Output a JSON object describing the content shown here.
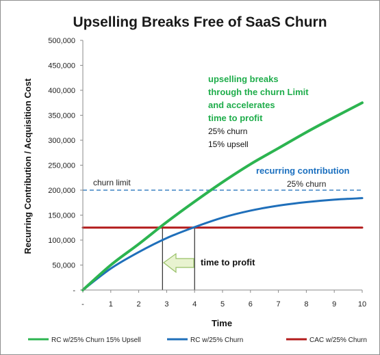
{
  "chart_data": {
    "type": "line",
    "title": "Upselling  Breaks Free of SaaS Churn",
    "xlabel": "Time",
    "ylabel": "Recurring Contribution / Acquisition Cost",
    "xlim": [
      0,
      10
    ],
    "ylim": [
      0,
      500000
    ],
    "x_tick_labels": [
      "-",
      "1",
      "2",
      "3",
      "4",
      "5",
      "6",
      "7",
      "8",
      "9",
      "10"
    ],
    "y_tick_labels": [
      "-",
      "50,000",
      "100,000",
      "150,000",
      "200,000",
      "250,000",
      "300,000",
      "350,000",
      "400,000",
      "450,000",
      "500,000"
    ],
    "x": [
      0,
      1,
      2,
      3,
      4,
      5,
      6,
      7,
      8,
      9,
      10
    ],
    "series": [
      {
        "name": "RC w/25% Churn  15% Upsell",
        "color": "#2cb450",
        "values": [
          0,
          50000,
          92000,
          136000,
          177000,
          216000,
          252000,
          284000,
          316000,
          346000,
          375000
        ]
      },
      {
        "name": "RC w/25% Churn",
        "color": "#1f6fba",
        "values": [
          0,
          43000,
          76000,
          104000,
          126000,
          145000,
          159000,
          169000,
          176000,
          181000,
          184000
        ]
      },
      {
        "name": "CAC w/25% Churn",
        "color": "#b31b1b",
        "values": [
          125000,
          125000,
          125000,
          125000,
          125000,
          125000,
          125000,
          125000,
          125000,
          125000,
          125000
        ]
      }
    ],
    "reference_lines": [
      {
        "label": "churn limit",
        "value": 200000,
        "style": "dashed",
        "color": "#3b82c4"
      }
    ],
    "vertical_markers": [
      2.85,
      4.0
    ],
    "annotations": {
      "green_lines": [
        "upselling breaks",
        "through the churn Limit",
        "and accelerates",
        "time to profit"
      ],
      "black_lines": [
        "25% churn",
        "15% upsell"
      ],
      "blue_label": "recurring contribution",
      "blue_sub": "25% churn",
      "arrow_label": "time to profit"
    },
    "grid": false,
    "legend_position": "bottom"
  }
}
